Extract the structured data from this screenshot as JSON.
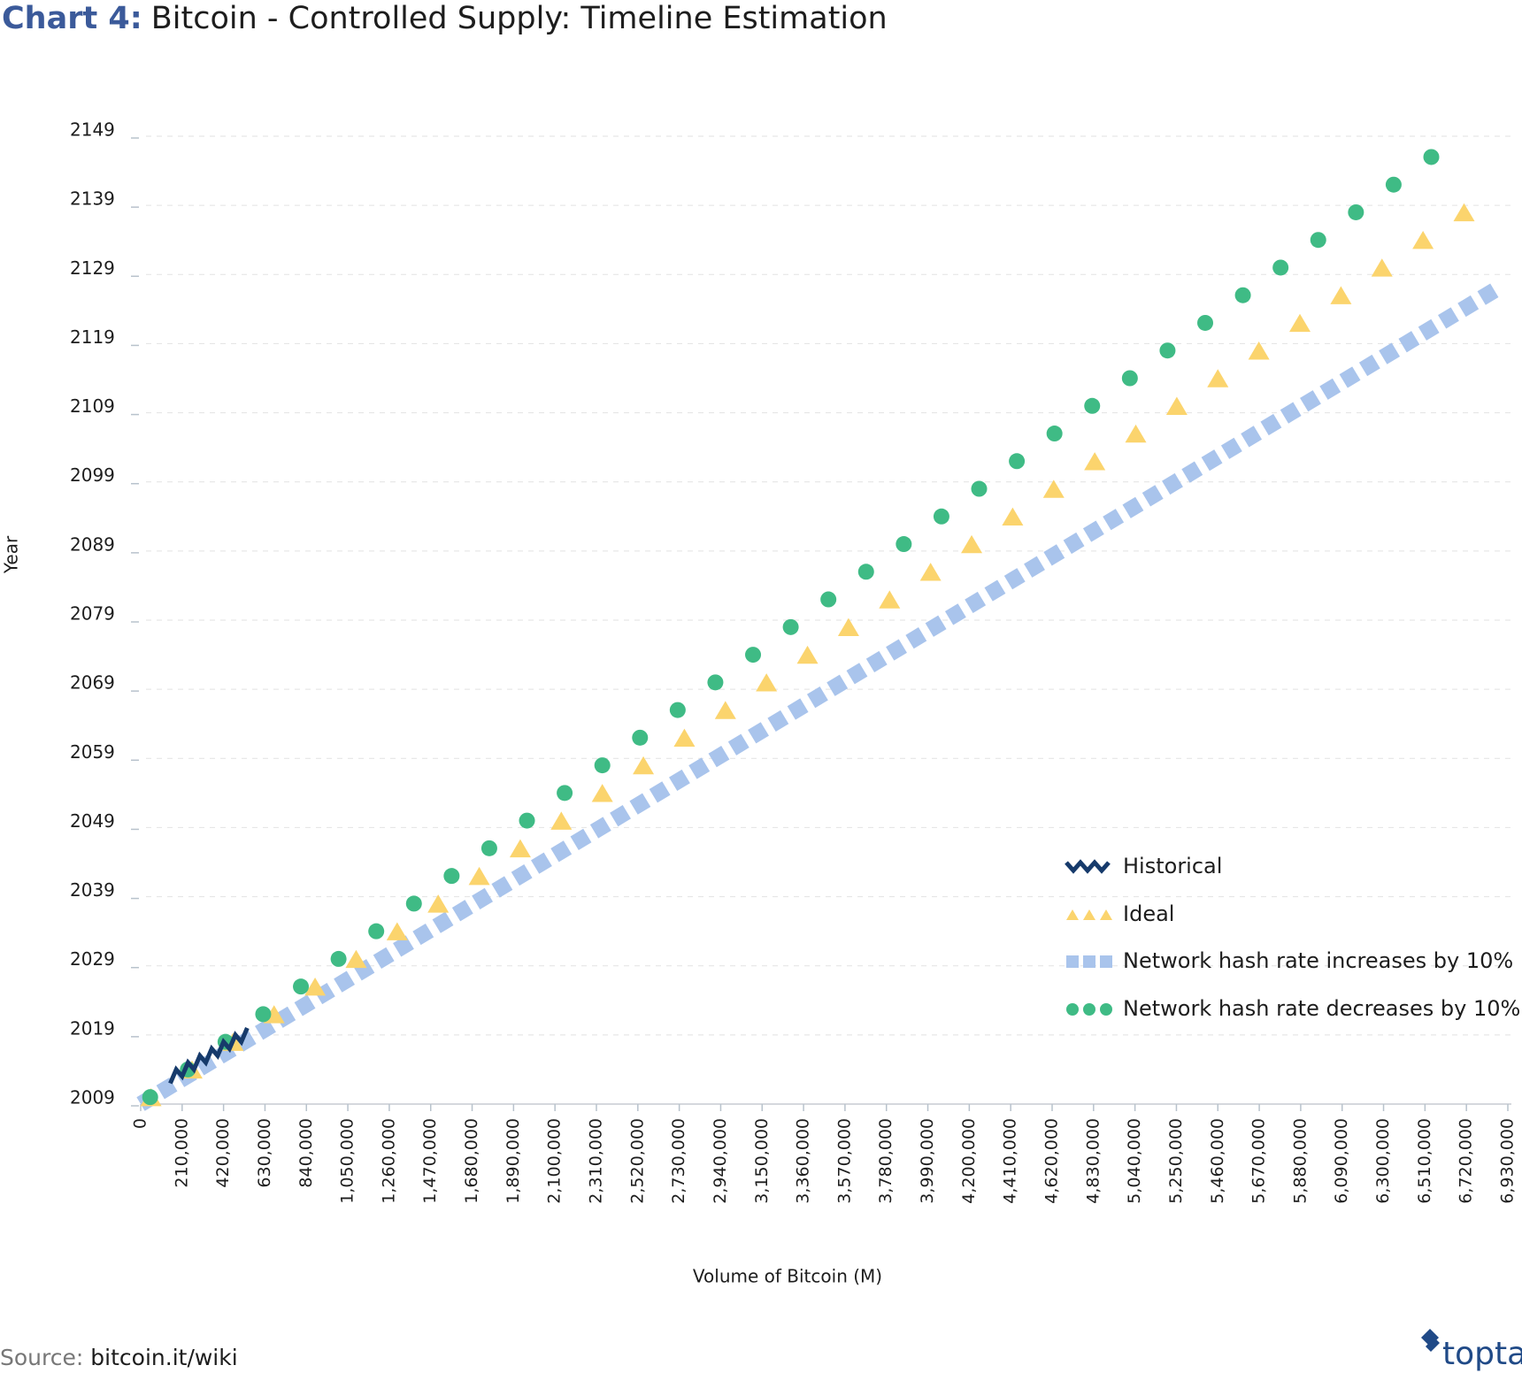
{
  "chart_data": {
    "type": "scatter",
    "title_label": "Chart 4:",
    "title": "Bitcoin - Controlled Supply: Timeline Estimation",
    "x_label": "Volume of Bitcoin (M)",
    "y_label": "Year",
    "source_label": "Source:",
    "source": "bitcoin.it/wiki",
    "logo": "toptal",
    "xlim": [
      0,
      6930000
    ],
    "xticks": [
      {
        "value": 0,
        "label": "0"
      },
      {
        "value": 210000,
        "label": "210,000"
      },
      {
        "value": 420000,
        "label": "420,000"
      },
      {
        "value": 630000,
        "label": "630,000"
      },
      {
        "value": 840000,
        "label": "840,000"
      },
      {
        "value": 1050000,
        "label": "1,050,000"
      },
      {
        "value": 1260000,
        "label": "1,260,000"
      },
      {
        "value": 1470000,
        "label": "1,470,000"
      },
      {
        "value": 1680000,
        "label": "1,680,000"
      },
      {
        "value": 1890000,
        "label": "1,890,000"
      },
      {
        "value": 2100000,
        "label": "2,100,000"
      },
      {
        "value": 2310000,
        "label": "2,310,000"
      },
      {
        "value": 2520000,
        "label": "2,520,000"
      },
      {
        "value": 2730000,
        "label": "2,730,000"
      },
      {
        "value": 2940000,
        "label": "2,940,000"
      },
      {
        "value": 3150000,
        "label": "3,150,000"
      },
      {
        "value": 3360000,
        "label": "3,360,000"
      },
      {
        "value": 3570000,
        "label": "3,570,000"
      },
      {
        "value": 3780000,
        "label": "3,780,000"
      },
      {
        "value": 3990000,
        "label": "3,990,000"
      },
      {
        "value": 4200000,
        "label": "4,200,000"
      },
      {
        "value": 4410000,
        "label": "4,410,000"
      },
      {
        "value": 4620000,
        "label": "4,620,000"
      },
      {
        "value": 4830000,
        "label": "4,830,000"
      },
      {
        "value": 5040000,
        "label": "5,040,000"
      },
      {
        "value": 5250000,
        "label": "5,250,000"
      },
      {
        "value": 5460000,
        "label": "5,460,000"
      },
      {
        "value": 5670000,
        "label": "5,670,000"
      },
      {
        "value": 5880000,
        "label": "5,880,000"
      },
      {
        "value": 6090000,
        "label": "6,090,000"
      },
      {
        "value": 6300000,
        "label": "6,300,000"
      },
      {
        "value": 6510000,
        "label": "6,510,000"
      },
      {
        "value": 6720000,
        "label": "6,720,000"
      },
      {
        "value": 6930000,
        "label": "6,930,000"
      }
    ],
    "ylim": [
      2009,
      2149
    ],
    "yticks": [
      2009,
      2019,
      2029,
      2039,
      2049,
      2059,
      2069,
      2079,
      2089,
      2099,
      2109,
      2119,
      2129,
      2139,
      2149
    ],
    "grid": true,
    "series": [
      {
        "name": "Historical",
        "color": "#163a6b",
        "marker": "zigzag",
        "x": [
          150000,
          180000,
          210000,
          240000,
          270000,
          300000,
          330000,
          360000,
          390000,
          420000,
          450000,
          480000,
          510000,
          540000
        ],
        "values": [
          2012,
          2014,
          2013,
          2015,
          2014,
          2016,
          2015,
          2017,
          2016,
          2018,
          2017,
          2019,
          2018,
          2020
        ]
      },
      {
        "name": "Ideal",
        "color": "#fbd46d",
        "marker": "triangle",
        "x": [
          52000,
          260000,
          468000,
          676000,
          884000,
          1092000,
          1300000,
          1508000,
          1716000,
          1924000,
          2132000,
          2340000,
          2548000,
          2756000,
          2964000,
          3172000,
          3380000,
          3588000,
          3796000,
          4004000,
          4212000,
          4420000,
          4628000,
          4836000,
          5044000,
          5252000,
          5460000,
          5668000,
          5876000,
          6084000,
          6292000,
          6500000,
          6708000
        ],
        "values": [
          2010,
          2014,
          2018,
          2022,
          2026,
          2030,
          2034,
          2038,
          2042,
          2046,
          2050,
          2054,
          2058,
          2062,
          2066,
          2070,
          2074,
          2078,
          2082,
          2086,
          2090,
          2094,
          2098,
          2102,
          2106,
          2110,
          2114,
          2118,
          2122,
          2126,
          2130,
          2134,
          2138
        ]
      },
      {
        "name": "Network hash rate increases by 10%",
        "color": "#a9c4ec",
        "marker": "dash",
        "x": [
          0,
          583000,
          1166000,
          1749000,
          2332000,
          2915000,
          3498000,
          4081000,
          4664000,
          5247000,
          5830000,
          6413000,
          6879000
        ],
        "values": [
          2009,
          2019,
          2029,
          2039,
          2049,
          2059,
          2069,
          2079,
          2089,
          2099,
          2109,
          2119,
          2127
        ]
      },
      {
        "name": "Network hash rate decreases by 10%",
        "color": "#3fbb85",
        "marker": "circle",
        "x": [
          48000,
          239000,
          430000,
          621000,
          812000,
          1003000,
          1194000,
          1385000,
          1576000,
          1767000,
          1958000,
          2149000,
          2340000,
          2531000,
          2722000,
          2913000,
          3104000,
          3295000,
          3486000,
          3677000,
          3868000,
          4059000,
          4250000,
          4441000,
          4632000,
          4823000,
          5014000,
          5205000,
          5396000,
          5587000,
          5778000,
          5969000,
          6160000,
          6351000,
          6542000
        ],
        "values": [
          2010,
          2014,
          2018,
          2022,
          2026,
          2030,
          2034,
          2038,
          2042,
          2046,
          2050,
          2054,
          2058,
          2062,
          2066,
          2070,
          2074,
          2078,
          2082,
          2086,
          2090,
          2094,
          2098,
          2102,
          2106,
          2110,
          2114,
          2118,
          2122,
          2126,
          2130,
          2134,
          2138,
          2142,
          2146
        ]
      }
    ]
  }
}
